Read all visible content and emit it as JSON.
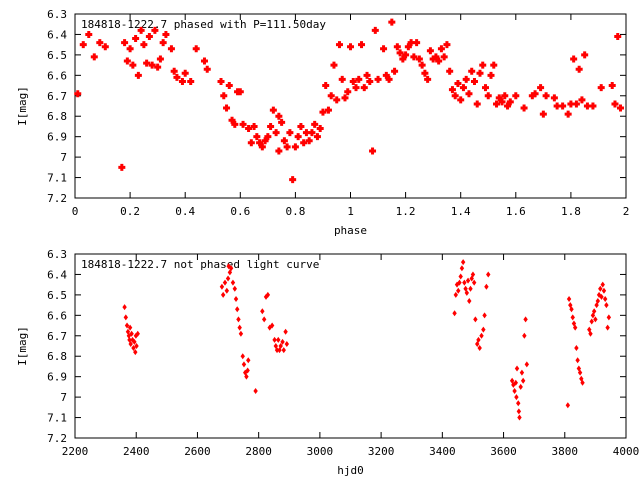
{
  "chart_data": [
    {
      "type": "scatter",
      "title": "184818-1222.7 phased with P=111.50day",
      "xlabel": "phase",
      "ylabel": "I[mag]",
      "xlim": [
        0,
        2
      ],
      "ylim": [
        6.3,
        7.2
      ],
      "y_inverted": true,
      "xticks": [
        "0",
        "0.2",
        "0.4",
        "0.6",
        "0.8",
        "1",
        "1.2",
        "1.4",
        "1.6",
        "1.8",
        "2"
      ],
      "yticks": [
        "6.3",
        "6.4",
        "6.5",
        "6.6",
        "6.7",
        "6.8",
        "6.9",
        "7",
        "7.1",
        "7.2"
      ],
      "marker_color": "#ff0000",
      "points": [
        [
          0.01,
          6.69
        ],
        [
          0.03,
          6.45
        ],
        [
          0.05,
          6.4
        ],
        [
          0.07,
          6.51
        ],
        [
          0.09,
          6.44
        ],
        [
          0.11,
          6.46
        ],
        [
          0.17,
          7.05
        ],
        [
          0.18,
          6.44
        ],
        [
          0.19,
          6.53
        ],
        [
          0.2,
          6.47
        ],
        [
          0.21,
          6.55
        ],
        [
          0.22,
          6.42
        ],
        [
          0.23,
          6.6
        ],
        [
          0.24,
          6.38
        ],
        [
          0.25,
          6.45
        ],
        [
          0.26,
          6.54
        ],
        [
          0.27,
          6.41
        ],
        [
          0.28,
          6.55
        ],
        [
          0.29,
          6.38
        ],
        [
          0.3,
          6.56
        ],
        [
          0.31,
          6.52
        ],
        [
          0.32,
          6.44
        ],
        [
          0.33,
          6.4
        ],
        [
          0.35,
          6.47
        ],
        [
          0.36,
          6.58
        ],
        [
          0.37,
          6.61
        ],
        [
          0.39,
          6.63
        ],
        [
          0.4,
          6.59
        ],
        [
          0.42,
          6.63
        ],
        [
          0.44,
          6.47
        ],
        [
          0.47,
          6.53
        ],
        [
          0.48,
          6.57
        ],
        [
          0.53,
          6.63
        ],
        [
          0.54,
          6.7
        ],
        [
          0.55,
          6.76
        ],
        [
          0.56,
          6.65
        ],
        [
          0.57,
          6.82
        ],
        [
          0.58,
          6.84
        ],
        [
          0.59,
          6.68
        ],
        [
          0.6,
          6.68
        ],
        [
          0.61,
          6.84
        ],
        [
          0.63,
          6.86
        ],
        [
          0.64,
          6.93
        ],
        [
          0.65,
          6.85
        ],
        [
          0.66,
          6.9
        ],
        [
          0.67,
          6.93
        ],
        [
          0.68,
          6.95
        ],
        [
          0.69,
          6.92
        ],
        [
          0.7,
          6.9
        ],
        [
          0.71,
          6.85
        ],
        [
          0.72,
          6.77
        ],
        [
          0.73,
          6.88
        ],
        [
          0.74,
          6.97
        ],
        [
          0.74,
          6.8
        ],
        [
          0.75,
          6.83
        ],
        [
          0.76,
          6.92
        ],
        [
          0.77,
          6.95
        ],
        [
          0.78,
          6.88
        ],
        [
          0.79,
          7.11
        ],
        [
          0.8,
          6.95
        ],
        [
          0.81,
          6.9
        ],
        [
          0.82,
          6.85
        ],
        [
          0.83,
          6.93
        ],
        [
          0.84,
          6.88
        ],
        [
          0.85,
          6.92
        ],
        [
          0.86,
          6.88
        ],
        [
          0.87,
          6.84
        ],
        [
          0.88,
          6.9
        ],
        [
          0.89,
          6.86
        ],
        [
          0.9,
          6.78
        ],
        [
          0.91,
          6.65
        ],
        [
          0.92,
          6.77
        ],
        [
          0.93,
          6.7
        ],
        [
          0.94,
          6.55
        ],
        [
          0.95,
          6.72
        ],
        [
          0.96,
          6.45
        ],
        [
          0.97,
          6.62
        ],
        [
          0.98,
          6.71
        ],
        [
          0.99,
          6.68
        ],
        [
          1.0,
          6.46
        ],
        [
          1.01,
          6.63
        ],
        [
          1.02,
          6.66
        ],
        [
          1.03,
          6.62
        ],
        [
          1.04,
          6.45
        ],
        [
          1.05,
          6.66
        ],
        [
          1.06,
          6.6
        ],
        [
          1.07,
          6.63
        ],
        [
          1.08,
          6.97
        ],
        [
          1.09,
          6.38
        ],
        [
          1.1,
          6.62
        ],
        [
          1.12,
          6.47
        ],
        [
          1.13,
          6.6
        ],
        [
          1.14,
          6.62
        ],
        [
          1.15,
          6.34
        ],
        [
          1.16,
          6.58
        ],
        [
          1.17,
          6.46
        ],
        [
          1.18,
          6.49
        ],
        [
          1.19,
          6.52
        ],
        [
          1.2,
          6.5
        ],
        [
          1.21,
          6.46
        ],
        [
          1.22,
          6.44
        ],
        [
          1.23,
          6.51
        ],
        [
          1.24,
          6.44
        ],
        [
          1.25,
          6.52
        ],
        [
          1.26,
          6.55
        ],
        [
          1.27,
          6.59
        ],
        [
          1.28,
          6.62
        ],
        [
          1.29,
          6.48
        ],
        [
          1.3,
          6.52
        ],
        [
          1.31,
          6.51
        ],
        [
          1.32,
          6.53
        ],
        [
          1.33,
          6.47
        ],
        [
          1.34,
          6.51
        ],
        [
          1.35,
          6.45
        ],
        [
          1.36,
          6.58
        ],
        [
          1.37,
          6.67
        ],
        [
          1.38,
          6.7
        ],
        [
          1.39,
          6.64
        ],
        [
          1.4,
          6.72
        ],
        [
          1.41,
          6.66
        ],
        [
          1.42,
          6.62
        ],
        [
          1.43,
          6.69
        ],
        [
          1.44,
          6.58
        ],
        [
          1.45,
          6.63
        ],
        [
          1.46,
          6.74
        ],
        [
          1.47,
          6.59
        ],
        [
          1.48,
          6.55
        ],
        [
          1.49,
          6.66
        ],
        [
          1.5,
          6.7
        ],
        [
          1.51,
          6.6
        ],
        [
          1.52,
          6.55
        ],
        [
          1.53,
          6.74
        ],
        [
          1.54,
          6.71
        ],
        [
          1.55,
          6.73
        ],
        [
          1.56,
          6.7
        ],
        [
          1.57,
          6.75
        ],
        [
          1.58,
          6.73
        ],
        [
          1.6,
          6.7
        ],
        [
          1.63,
          6.76
        ],
        [
          1.66,
          6.7
        ],
        [
          1.67,
          6.69
        ],
        [
          1.69,
          6.66
        ],
        [
          1.7,
          6.79
        ],
        [
          1.71,
          6.7
        ],
        [
          1.74,
          6.71
        ],
        [
          1.75,
          6.75
        ],
        [
          1.77,
          6.75
        ],
        [
          1.79,
          6.79
        ],
        [
          1.8,
          6.74
        ],
        [
          1.81,
          6.52
        ],
        [
          1.82,
          6.74
        ],
        [
          1.83,
          6.57
        ],
        [
          1.84,
          6.72
        ],
        [
          1.85,
          6.5
        ],
        [
          1.86,
          6.75
        ],
        [
          1.88,
          6.75
        ],
        [
          1.91,
          6.66
        ],
        [
          1.95,
          6.65
        ],
        [
          1.96,
          6.74
        ],
        [
          1.97,
          6.41
        ],
        [
          1.98,
          6.76
        ]
      ]
    },
    {
      "type": "scatter",
      "title": "184818-1222.7 not phased light curve",
      "xlabel": "hjd0",
      "ylabel": "I[mag]",
      "xlim": [
        2200,
        4000
      ],
      "ylim": [
        6.3,
        7.2
      ],
      "y_inverted": true,
      "xticks": [
        "2200",
        "2400",
        "2600",
        "2800",
        "3000",
        "3200",
        "3400",
        "3600",
        "3800",
        "4000"
      ],
      "yticks": [
        "6.3",
        "6.4",
        "6.5",
        "6.6",
        "6.7",
        "6.8",
        "6.9",
        "7",
        "7.1",
        "7.2"
      ],
      "marker_color": "#ff0000",
      "points": [
        [
          2362,
          6.56
        ],
        [
          2366,
          6.61
        ],
        [
          2370,
          6.65
        ],
        [
          2373,
          6.68
        ],
        [
          2376,
          6.7
        ],
        [
          2378,
          6.72
        ],
        [
          2380,
          6.66
        ],
        [
          2382,
          6.74
        ],
        [
          2385,
          6.69
        ],
        [
          2388,
          6.72
        ],
        [
          2391,
          6.76
        ],
        [
          2394,
          6.73
        ],
        [
          2397,
          6.78
        ],
        [
          2399,
          6.7
        ],
        [
          2401,
          6.75
        ],
        [
          2405,
          6.69
        ],
        [
          2680,
          6.46
        ],
        [
          2684,
          6.5
        ],
        [
          2690,
          6.44
        ],
        [
          2696,
          6.48
        ],
        [
          2700,
          6.42
        ],
        [
          2702,
          6.36
        ],
        [
          2706,
          6.39
        ],
        [
          2710,
          6.37
        ],
        [
          2716,
          6.44
        ],
        [
          2722,
          6.47
        ],
        [
          2726,
          6.52
        ],
        [
          2730,
          6.57
        ],
        [
          2734,
          6.62
        ],
        [
          2738,
          6.66
        ],
        [
          2742,
          6.69
        ],
        [
          2748,
          6.8
        ],
        [
          2752,
          6.84
        ],
        [
          2756,
          6.88
        ],
        [
          2760,
          6.9
        ],
        [
          2764,
          6.87
        ],
        [
          2766,
          6.82
        ],
        [
          2790,
          6.97
        ],
        [
          2812,
          6.58
        ],
        [
          2818,
          6.62
        ],
        [
          2824,
          6.51
        ],
        [
          2830,
          6.5
        ],
        [
          2836,
          6.66
        ],
        [
          2844,
          6.65
        ],
        [
          2852,
          6.72
        ],
        [
          2856,
          6.75
        ],
        [
          2860,
          6.77
        ],
        [
          2864,
          6.72
        ],
        [
          2868,
          6.77
        ],
        [
          2872,
          6.75
        ],
        [
          2878,
          6.73
        ],
        [
          2882,
          6.77
        ],
        [
          2888,
          6.68
        ],
        [
          2892,
          6.74
        ],
        [
          3440,
          6.59
        ],
        [
          3444,
          6.5
        ],
        [
          3448,
          6.45
        ],
        [
          3452,
          6.48
        ],
        [
          3456,
          6.44
        ],
        [
          3460,
          6.41
        ],
        [
          3464,
          6.37
        ],
        [
          3468,
          6.34
        ],
        [
          3472,
          6.44
        ],
        [
          3476,
          6.47
        ],
        [
          3480,
          6.49
        ],
        [
          3484,
          6.43
        ],
        [
          3488,
          6.53
        ],
        [
          3492,
          6.47
        ],
        [
          3496,
          6.42
        ],
        [
          3500,
          6.4
        ],
        [
          3504,
          6.44
        ],
        [
          3508,
          6.62
        ],
        [
          3514,
          6.74
        ],
        [
          3518,
          6.72
        ],
        [
          3522,
          6.76
        ],
        [
          3528,
          6.7
        ],
        [
          3534,
          6.67
        ],
        [
          3538,
          6.6
        ],
        [
          3544,
          6.46
        ],
        [
          3550,
          6.4
        ],
        [
          3628,
          6.92
        ],
        [
          3632,
          6.94
        ],
        [
          3636,
          6.97
        ],
        [
          3640,
          6.93
        ],
        [
          3642,
          7.0
        ],
        [
          3644,
          6.86
        ],
        [
          3648,
          7.03
        ],
        [
          3650,
          7.07
        ],
        [
          3652,
          7.1
        ],
        [
          3656,
          6.95
        ],
        [
          3660,
          6.88
        ],
        [
          3664,
          6.92
        ],
        [
          3668,
          6.7
        ],
        [
          3672,
          6.62
        ],
        [
          3676,
          6.84
        ],
        [
          3810,
          7.04
        ],
        [
          3814,
          6.52
        ],
        [
          3818,
          6.55
        ],
        [
          3822,
          6.57
        ],
        [
          3826,
          6.61
        ],
        [
          3830,
          6.64
        ],
        [
          3834,
          6.66
        ],
        [
          3838,
          6.76
        ],
        [
          3842,
          6.82
        ],
        [
          3846,
          6.86
        ],
        [
          3850,
          6.88
        ],
        [
          3854,
          6.91
        ],
        [
          3858,
          6.93
        ],
        [
          3880,
          6.67
        ],
        [
          3884,
          6.69
        ],
        [
          3888,
          6.63
        ],
        [
          3892,
          6.6
        ],
        [
          3896,
          6.58
        ],
        [
          3900,
          6.62
        ],
        [
          3904,
          6.55
        ],
        [
          3908,
          6.53
        ],
        [
          3912,
          6.5
        ],
        [
          3916,
          6.47
        ],
        [
          3920,
          6.51
        ],
        [
          3924,
          6.45
        ],
        [
          3928,
          6.48
        ],
        [
          3932,
          6.52
        ],
        [
          3936,
          6.55
        ],
        [
          3940,
          6.66
        ],
        [
          3944,
          6.61
        ]
      ]
    }
  ]
}
